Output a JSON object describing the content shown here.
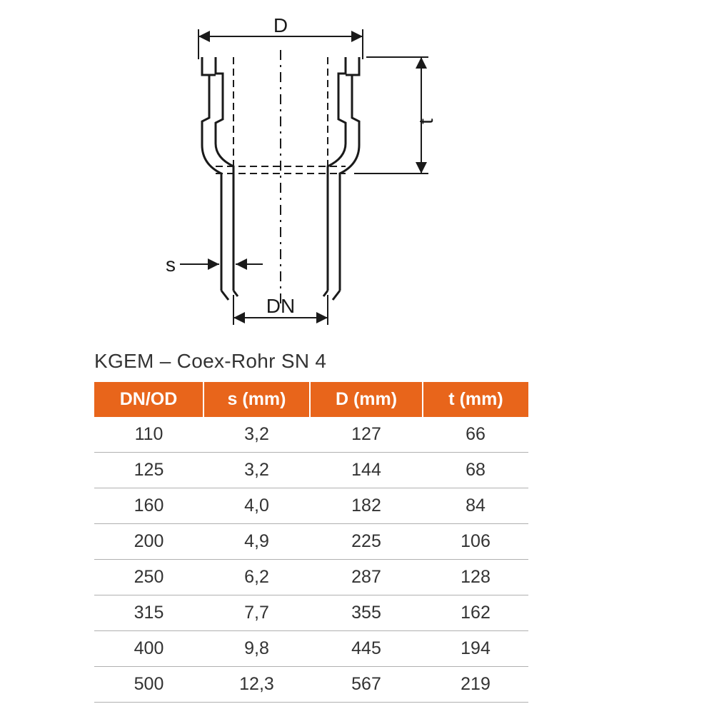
{
  "diagram": {
    "labels": {
      "D": "D",
      "t": "t",
      "s": "s",
      "DN": "DN"
    },
    "stroke_color": "#1a1a1a",
    "stroke_width_main": 3,
    "stroke_width_dim": 2,
    "dash_pattern": "10 6 2 6"
  },
  "table": {
    "title": "KGEM – Coex-Rohr SN 4",
    "header_bg": "#e8651b",
    "header_fg": "#ffffff",
    "row_border": "#b0b0b0",
    "title_fontsize": 28,
    "cell_fontsize": 25,
    "columns": [
      {
        "key": "dn",
        "label": "DN/OD",
        "width": 153
      },
      {
        "key": "s",
        "label": "s (mm)",
        "width": 149
      },
      {
        "key": "d",
        "label": "D (mm)",
        "width": 158
      },
      {
        "key": "t",
        "label": "t (mm)",
        "width": 148
      }
    ],
    "rows": [
      {
        "dn": "110",
        "s": "3,2",
        "d": "127",
        "t": "66"
      },
      {
        "dn": "125",
        "s": "3,2",
        "d": "144",
        "t": "68"
      },
      {
        "dn": "160",
        "s": "4,0",
        "d": "182",
        "t": "84"
      },
      {
        "dn": "200",
        "s": "4,9",
        "d": "225",
        "t": "106"
      },
      {
        "dn": "250",
        "s": "6,2",
        "d": "287",
        "t": "128"
      },
      {
        "dn": "315",
        "s": "7,7",
        "d": "355",
        "t": "162"
      },
      {
        "dn": "400",
        "s": "9,8",
        "d": "445",
        "t": "194"
      },
      {
        "dn": "500",
        "s": "12,3",
        "d": "567",
        "t": "219"
      }
    ]
  }
}
